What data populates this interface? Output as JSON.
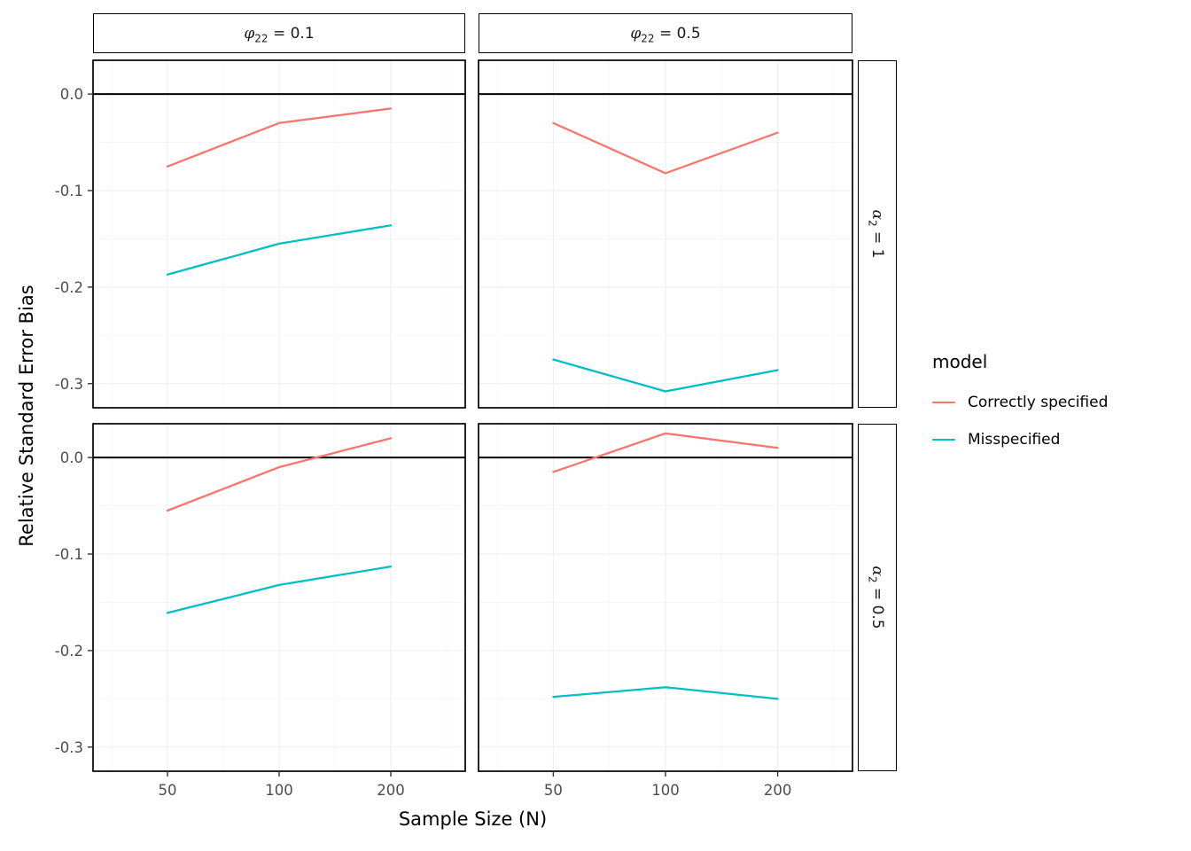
{
  "axes": {
    "x_label": "Sample Size (N)",
    "y_label": "Relative Standard Error Bias",
    "x_ticks": [
      "50",
      "100",
      "200"
    ],
    "x_tick_values": [
      50,
      100,
      200
    ],
    "y_ticks": [
      "0.0",
      "-0.1",
      "-0.2",
      "-0.3"
    ],
    "y_tick_values": [
      0,
      -0.1,
      -0.2,
      -0.3
    ]
  },
  "facets": {
    "cols": [
      {
        "prefix": "φ",
        "sub": "22",
        "suffix": " = 0.1"
      },
      {
        "prefix": "φ",
        "sub": "22",
        "suffix": " = 0.5"
      }
    ],
    "rows": [
      {
        "prefix": "α",
        "sub": "2",
        "suffix": " = 1"
      },
      {
        "prefix": "α",
        "sub": "2",
        "suffix": " = 0.5"
      }
    ]
  },
  "legend": {
    "title": "model",
    "entries": [
      {
        "label": "Correctly specified",
        "color": "#F8766D"
      },
      {
        "label": "Misspecified",
        "color": "#00BFC4"
      }
    ]
  },
  "colors": {
    "correct": "#F8766D",
    "misspecified": "#00BFC4",
    "grid_major": "#F0F0F0",
    "grid_minor": "#F7F7F7",
    "axis_text": "#4D4D4D",
    "reference_line": "#000000"
  },
  "chart_data": {
    "type": "line",
    "title": "",
    "xlabel": "Sample Size (N)",
    "ylabel": "Relative Standard Error Bias",
    "x": [
      50,
      100,
      200
    ],
    "x_scale": "log",
    "ylim": [
      -0.325,
      0.035
    ],
    "grid": true,
    "legend_position": "right",
    "reference_line_y": 0,
    "facet_col_label": "φ22",
    "facet_row_label": "α2",
    "panels": [
      {
        "col": "φ22 = 0.1",
        "row": "α2 = 1",
        "series": [
          {
            "name": "Correctly specified",
            "values": [
              -0.075,
              -0.03,
              -0.015
            ]
          },
          {
            "name": "Misspecified",
            "values": [
              -0.187,
              -0.155,
              -0.136
            ]
          }
        ]
      },
      {
        "col": "φ22 = 0.5",
        "row": "α2 = 1",
        "series": [
          {
            "name": "Correctly specified",
            "values": [
              -0.03,
              -0.082,
              -0.04
            ]
          },
          {
            "name": "Misspecified",
            "values": [
              -0.275,
              -0.308,
              -0.286
            ]
          }
        ]
      },
      {
        "col": "φ22 = 0.1",
        "row": "α2 = 0.5",
        "series": [
          {
            "name": "Correctly specified",
            "values": [
              -0.055,
              -0.01,
              0.02
            ]
          },
          {
            "name": "Misspecified",
            "values": [
              -0.161,
              -0.132,
              -0.113
            ]
          }
        ]
      },
      {
        "col": "φ22 = 0.5",
        "row": "α2 = 0.5",
        "series": [
          {
            "name": "Correctly specified",
            "values": [
              -0.015,
              0.025,
              0.01
            ]
          },
          {
            "name": "Misspecified",
            "values": [
              -0.248,
              -0.238,
              -0.25
            ]
          }
        ]
      }
    ]
  }
}
